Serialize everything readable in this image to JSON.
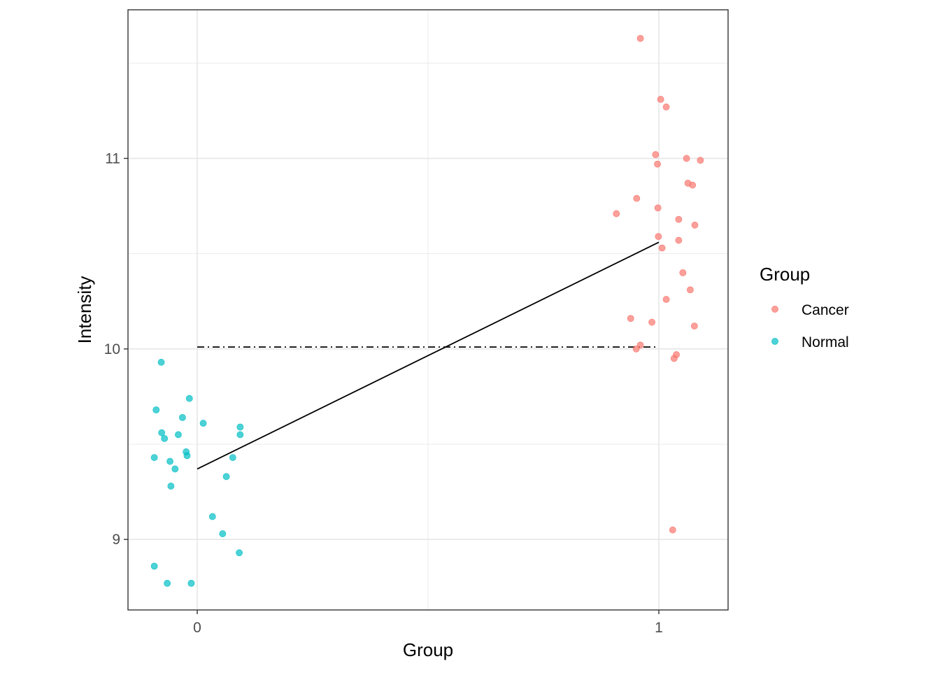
{
  "chart_data": {
    "type": "scatter",
    "xlabel": "Group",
    "ylabel": "Intensity",
    "xlim": [
      -0.15,
      1.15
    ],
    "ylim": [
      8.63,
      11.78
    ],
    "x_ticks": [
      0,
      1
    ],
    "x_tick_labels": [
      "0",
      "1"
    ],
    "y_ticks": [
      9,
      10,
      11
    ],
    "y_tick_labels": [
      "9",
      "10",
      "11"
    ],
    "grid": true,
    "legend": {
      "title": "Group",
      "placement": "right",
      "entries": [
        {
          "name": "Cancer",
          "color": "#f8766d"
        },
        {
          "name": "Normal",
          "color": "#00bfc4"
        }
      ]
    },
    "series": [
      {
        "name": "Cancer",
        "color": "#f8766d",
        "points": [
          {
            "x": 0.96,
            "y": 11.63
          },
          {
            "x": 1.004,
            "y": 11.31
          },
          {
            "x": 1.016,
            "y": 11.27
          },
          {
            "x": 0.993,
            "y": 11.02
          },
          {
            "x": 0.997,
            "y": 10.97
          },
          {
            "x": 1.06,
            "y": 11.0
          },
          {
            "x": 1.09,
            "y": 10.99
          },
          {
            "x": 1.063,
            "y": 10.87
          },
          {
            "x": 1.073,
            "y": 10.86
          },
          {
            "x": 0.952,
            "y": 10.79
          },
          {
            "x": 0.998,
            "y": 10.74
          },
          {
            "x": 0.908,
            "y": 10.71
          },
          {
            "x": 1.043,
            "y": 10.68
          },
          {
            "x": 1.078,
            "y": 10.65
          },
          {
            "x": 0.999,
            "y": 10.59
          },
          {
            "x": 1.043,
            "y": 10.57
          },
          {
            "x": 1.007,
            "y": 10.53
          },
          {
            "x": 1.052,
            "y": 10.4
          },
          {
            "x": 1.068,
            "y": 10.31
          },
          {
            "x": 1.016,
            "y": 10.26
          },
          {
            "x": 0.939,
            "y": 10.16
          },
          {
            "x": 0.985,
            "y": 10.14
          },
          {
            "x": 1.077,
            "y": 10.12
          },
          {
            "x": 0.96,
            "y": 10.02
          },
          {
            "x": 0.951,
            "y": 10.0
          },
          {
            "x": 1.038,
            "y": 9.97
          },
          {
            "x": 1.033,
            "y": 9.95
          },
          {
            "x": 1.03,
            "y": 9.05
          }
        ]
      },
      {
        "name": "Normal",
        "color": "#00bfc4",
        "points": [
          {
            "x": -0.078,
            "y": 9.93
          },
          {
            "x": -0.017,
            "y": 9.74
          },
          {
            "x": -0.089,
            "y": 9.68
          },
          {
            "x": -0.032,
            "y": 9.64
          },
          {
            "x": 0.013,
            "y": 9.61
          },
          {
            "x": 0.093,
            "y": 9.59
          },
          {
            "x": -0.077,
            "y": 9.56
          },
          {
            "x": -0.041,
            "y": 9.55
          },
          {
            "x": 0.093,
            "y": 9.55
          },
          {
            "x": -0.071,
            "y": 9.53
          },
          {
            "x": -0.024,
            "y": 9.46
          },
          {
            "x": -0.022,
            "y": 9.44
          },
          {
            "x": -0.093,
            "y": 9.43
          },
          {
            "x": 0.077,
            "y": 9.43
          },
          {
            "x": -0.059,
            "y": 9.41
          },
          {
            "x": -0.048,
            "y": 9.37
          },
          {
            "x": 0.063,
            "y": 9.33
          },
          {
            "x": -0.057,
            "y": 9.28
          },
          {
            "x": 0.033,
            "y": 9.12
          },
          {
            "x": 0.055,
            "y": 9.03
          },
          {
            "x": 0.091,
            "y": 8.93
          },
          {
            "x": -0.093,
            "y": 8.86
          },
          {
            "x": -0.065,
            "y": 8.77
          },
          {
            "x": -0.013,
            "y": 8.77
          }
        ]
      }
    ],
    "lines": [
      {
        "name": "fit",
        "style": "solid",
        "color": "#000000",
        "x": [
          0,
          1
        ],
        "y": [
          9.37,
          10.56
        ]
      },
      {
        "name": "mean",
        "style": "dotdash",
        "color": "#000000",
        "x": [
          0,
          1
        ],
        "y": [
          10.01,
          10.01
        ]
      }
    ]
  }
}
